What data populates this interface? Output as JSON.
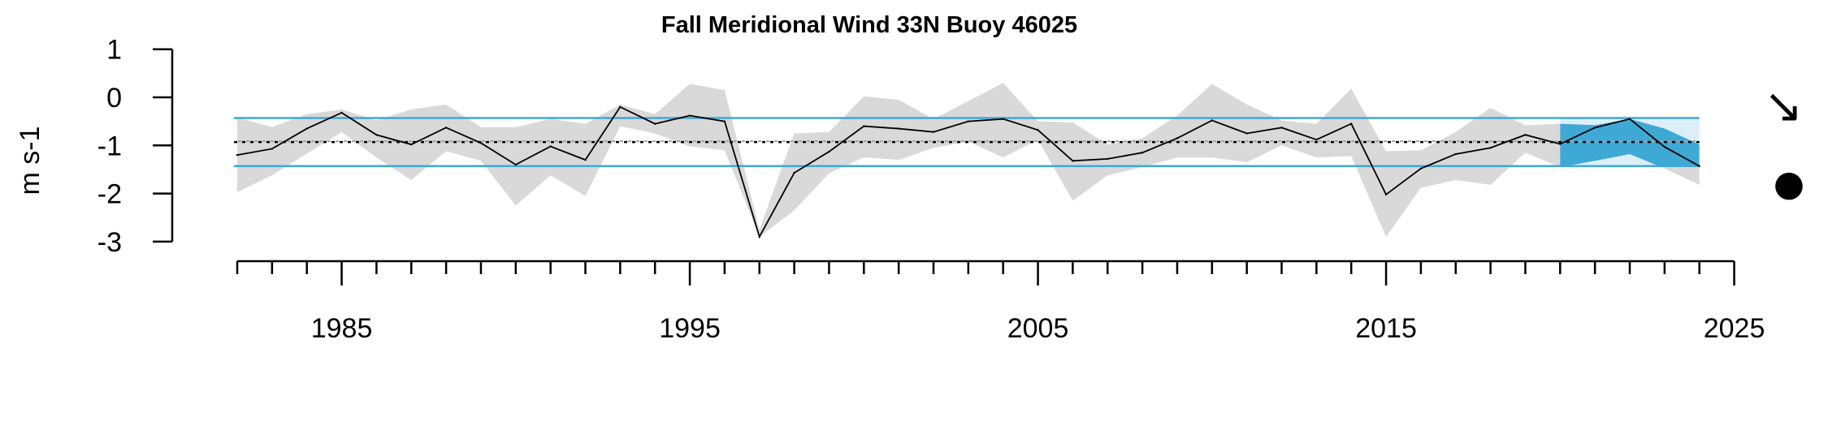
{
  "chart_data": {
    "type": "line",
    "title": "Fall Meridional Wind 33N Buoy 46025",
    "xlabel": "",
    "ylabel": "m s-1",
    "xlim": [
      1982,
      2024
    ],
    "ylim": [
      -3,
      1
    ],
    "x_major_ticks": [
      1985,
      1995,
      2005,
      2015,
      2025
    ],
    "y_ticks": [
      1,
      0,
      -1,
      -2,
      -3
    ],
    "mean": -0.93,
    "sd_upper": -0.43,
    "sd_lower": -1.43,
    "highlight_period": [
      2020,
      2024
    ],
    "trend_indicators": {
      "recent_trend_symbol": "↘",
      "recent_mean_symbol": "●"
    },
    "colors": {
      "line": "#000000",
      "uncertainty_band": "#d9d9d9",
      "sd_lines": "#3fa9d6",
      "highlight_box": "#3fa9d6",
      "highlight_fill": "#3fa9d6",
      "mean_line": "#000000",
      "reference_line": "#a0a0a0"
    },
    "series": [
      {
        "x": [
          1982,
          1983,
          1984,
          1985,
          1986,
          1987,
          1988,
          1989,
          1990,
          1991,
          1992,
          1993,
          1994,
          1995,
          1996,
          1997,
          1998,
          1999,
          2000,
          2001,
          2002,
          2003,
          2004,
          2005,
          2006,
          2007,
          2008,
          2009,
          2010,
          2011,
          2012,
          2013,
          2014,
          2015,
          2016,
          2017,
          2018,
          2019,
          2020,
          2021,
          2022,
          2023,
          2024
        ],
        "values": [
          -1.2,
          -1.07,
          -0.65,
          -0.32,
          -0.78,
          -0.98,
          -0.63,
          -0.95,
          -1.4,
          -1.02,
          -1.3,
          -0.2,
          -0.55,
          -0.38,
          -0.5,
          -2.9,
          -1.57,
          -1.13,
          -0.6,
          -0.65,
          -0.72,
          -0.5,
          -0.45,
          -0.68,
          -1.32,
          -1.28,
          -1.15,
          -0.85,
          -0.48,
          -0.75,
          -0.63,
          -0.88,
          -0.55,
          -2.02,
          -1.48,
          -1.18,
          -1.05,
          -0.78,
          -0.97,
          -0.63,
          -0.45,
          -1.03,
          -1.43
        ],
        "lower": [
          -1.97,
          -1.62,
          -1.17,
          -0.72,
          -1.25,
          -1.72,
          -1.12,
          -1.32,
          -2.25,
          -1.62,
          -2.05,
          -0.6,
          -0.75,
          -1.02,
          -1.1,
          -2.9,
          -2.35,
          -1.58,
          -1.25,
          -1.3,
          -1.05,
          -0.92,
          -1.25,
          -0.88,
          -2.15,
          -1.62,
          -1.45,
          -1.25,
          -1.25,
          -1.35,
          -1.0,
          -1.25,
          -1.22,
          -2.9,
          -1.88,
          -1.72,
          -1.82,
          -1.15,
          -1.45,
          -1.32,
          -1.18,
          -1.48,
          -1.82
        ],
        "upper": [
          -0.42,
          -0.62,
          -0.35,
          -0.25,
          -0.48,
          -0.25,
          -0.15,
          -0.62,
          -0.62,
          -0.45,
          -0.55,
          -0.15,
          -0.35,
          0.28,
          0.15,
          -2.75,
          -0.75,
          -0.72,
          0.02,
          -0.05,
          -0.45,
          -0.08,
          0.3,
          -0.5,
          -0.52,
          -0.98,
          -0.85,
          -0.38,
          0.28,
          -0.15,
          -0.48,
          -0.55,
          0.18,
          -1.12,
          -1.1,
          -0.72,
          -0.22,
          -0.58,
          -0.55,
          -0.58,
          -0.45,
          -0.65,
          -0.98
        ]
      }
    ]
  }
}
